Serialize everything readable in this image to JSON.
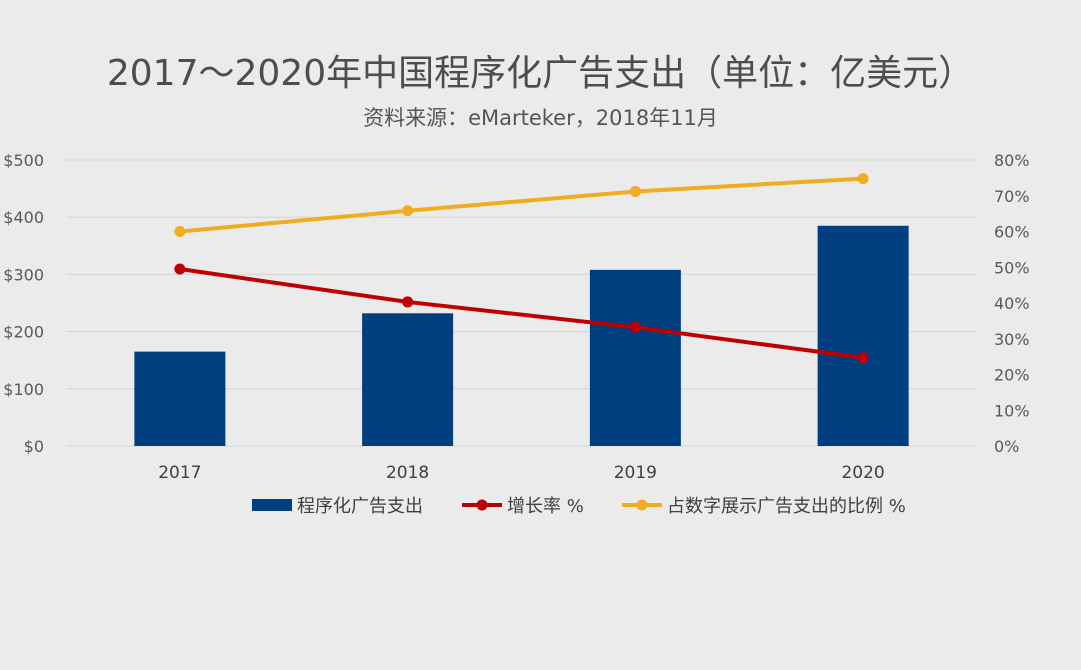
{
  "chart_data": {
    "type": "bar",
    "title": "2017～2020年中国程序化广告支出（单位：亿美元）",
    "subtitle": "资料来源：eMarteker，2018年11月",
    "categories": [
      "2017",
      "2018",
      "2019",
      "2020"
    ],
    "y_left": {
      "ticks": [
        "$0",
        "$100",
        "$200",
        "$300",
        "$400",
        "$500"
      ],
      "ylim": [
        0,
        500
      ]
    },
    "y_right": {
      "ticks": [
        "0%",
        "10%",
        "20%",
        "30%",
        "40%",
        "50%",
        "60%",
        "70%",
        "80%"
      ],
      "ylim": [
        0,
        80
      ]
    },
    "grid": true,
    "legend_position": "bottom",
    "series": [
      {
        "name": "程序化广告支出",
        "kind": "bar",
        "axis": "left",
        "color": "#003f7f",
        "values": [
          165,
          232,
          308,
          385
        ]
      },
      {
        "name": "增长率 %",
        "kind": "line",
        "axis": "right",
        "color": "#c00000",
        "values": [
          49.5,
          40.3,
          33.2,
          24.7
        ]
      },
      {
        "name": "占数字展示广告支出的比例 %",
        "kind": "line",
        "axis": "right",
        "color": "#f0ac22",
        "values": [
          60.0,
          65.8,
          71.2,
          74.8
        ]
      }
    ]
  }
}
